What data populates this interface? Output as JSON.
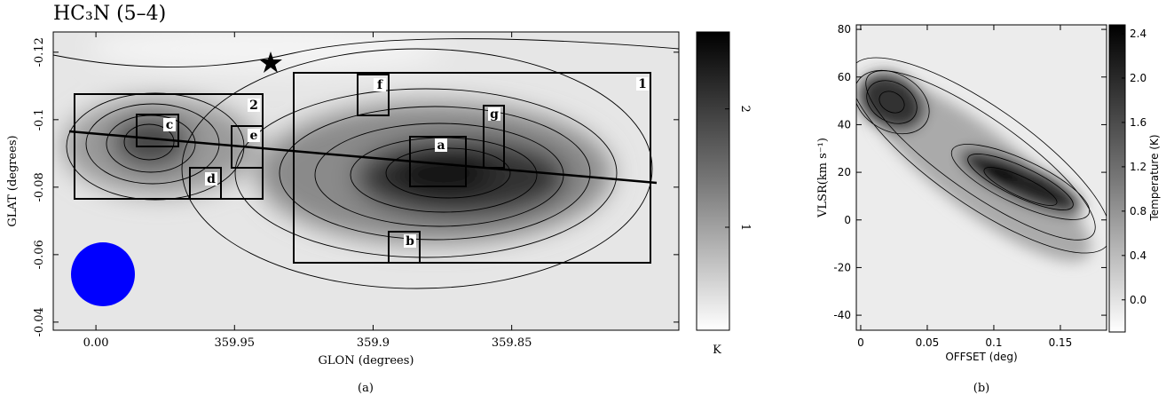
{
  "chart_data": [
    {
      "type": "map",
      "title": "HC₃N (5–4)",
      "xlabel": "GLON (degrees)",
      "ylabel": "GLAT (degrees)",
      "xlim": [
        0.0154,
        -0.2103
      ],
      "xticks": [
        {
          "value": 0,
          "label": "0.00"
        },
        {
          "value": -0.05,
          "label": "359.95"
        },
        {
          "value": -0.1,
          "label": "359.9"
        },
        {
          "value": -0.15,
          "label": "359.85"
        }
      ],
      "ylim": [
        -0.0376,
        -0.126
      ],
      "yticks": [
        -0.04,
        -0.06,
        -0.08,
        -0.1,
        -0.12
      ],
      "regions": [
        "1",
        "2",
        "a",
        "b",
        "c",
        "d",
        "e",
        "f",
        "g"
      ],
      "colorbar": {
        "label": "K",
        "lim": [
          0.13,
          2.65
        ],
        "ticks": [
          1,
          2
        ]
      },
      "caption": "(a)"
    },
    {
      "type": "pv",
      "xlabel": "OFFSET (deg)",
      "ylabel": "VLSR(km s⁻¹)",
      "xlim": [
        -0.0033,
        0.1847
      ],
      "xticks": [
        0,
        0.05,
        0.1,
        0.15
      ],
      "ylim": [
        -46.3,
        81.9
      ],
      "yticks": [
        -40,
        -20,
        0,
        20,
        40,
        60,
        80
      ],
      "colorbar": {
        "label": "Temperature (K)",
        "lim": [
          -0.29,
          2.48
        ],
        "ticks": [
          {
            "value": 0,
            "label": "0.0"
          },
          0.4,
          0.8,
          1.2,
          1.6,
          {
            "value": 2,
            "label": "2.0"
          },
          2.4
        ]
      },
      "caption": "(b)"
    }
  ]
}
